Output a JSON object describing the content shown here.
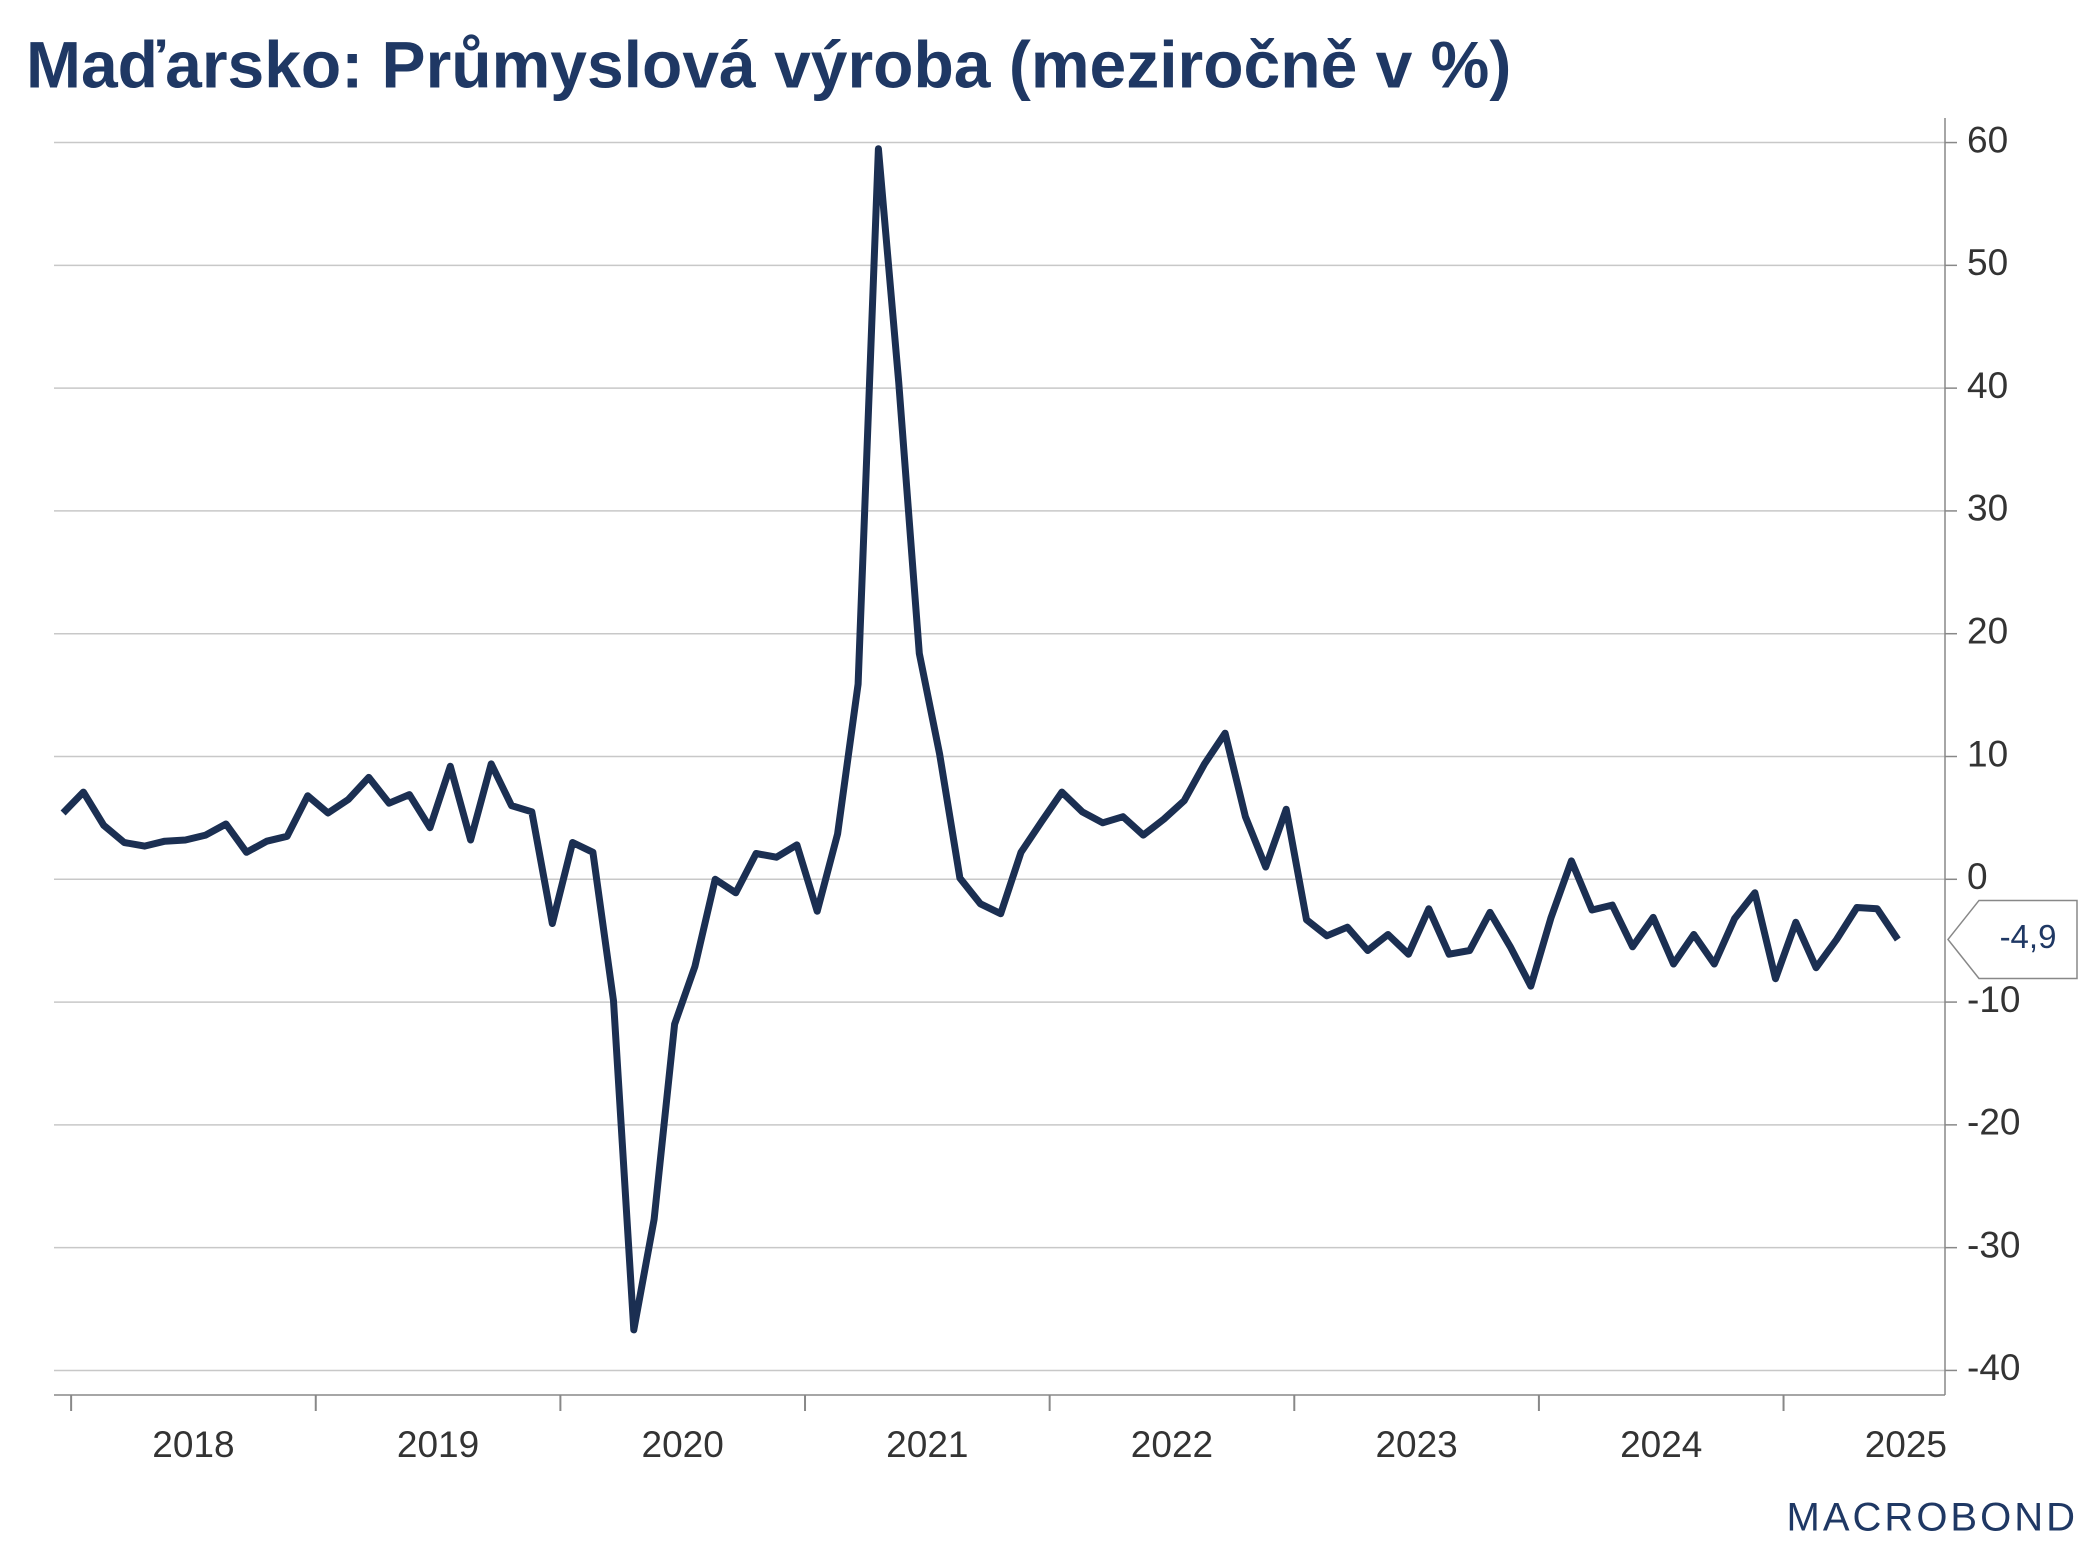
{
  "chart_data": {
    "type": "line",
    "title": "Maďarsko: Průmyslová výroba (meziročně v %)",
    "source": "MACROBOND",
    "x": [
      2017.967,
      2018.05,
      2018.133,
      2018.217,
      2018.3,
      2018.383,
      2018.467,
      2018.55,
      2018.633,
      2018.717,
      2018.8,
      2018.883,
      2018.967,
      2019.05,
      2019.133,
      2019.217,
      2019.3,
      2019.383,
      2019.467,
      2019.55,
      2019.633,
      2019.717,
      2019.8,
      2019.883,
      2019.967,
      2020.05,
      2020.133,
      2020.217,
      2020.3,
      2020.383,
      2020.467,
      2020.55,
      2020.633,
      2020.717,
      2020.8,
      2020.883,
      2020.967,
      2021.05,
      2021.133,
      2021.217,
      2021.3,
      2021.383,
      2021.467,
      2021.55,
      2021.633,
      2021.717,
      2021.8,
      2021.883,
      2021.967,
      2022.05,
      2022.133,
      2022.217,
      2022.3,
      2022.383,
      2022.467,
      2022.55,
      2022.633,
      2022.717,
      2022.8,
      2022.883,
      2022.967,
      2023.05,
      2023.133,
      2023.217,
      2023.3,
      2023.383,
      2023.467,
      2023.55,
      2023.633,
      2023.717,
      2023.8,
      2023.883,
      2023.967,
      2024.05,
      2024.133,
      2024.217,
      2024.3,
      2024.383,
      2024.467,
      2024.55,
      2024.633,
      2024.717,
      2024.8,
      2024.883,
      2024.967,
      2025.05,
      2025.133,
      2025.217,
      2025.3,
      2025.383,
      2025.467
    ],
    "series": [
      {
        "name": "Průmyslová výroba",
        "color": "#1b2f52",
        "values": [
          5.4,
          7.1,
          4.4,
          3.0,
          2.7,
          3.1,
          3.2,
          3.6,
          4.5,
          2.2,
          3.1,
          3.5,
          6.8,
          5.4,
          6.5,
          8.3,
          6.2,
          6.9,
          4.2,
          9.2,
          3.2,
          9.4,
          6.0,
          5.5,
          -3.6,
          3.0,
          2.2,
          -9.9,
          -36.7,
          -27.7,
          -11.8,
          -7.1,
          0.0,
          -1.1,
          2.1,
          1.8,
          2.8,
          -2.6,
          3.7,
          15.9,
          59.5,
          40.5,
          18.4,
          10.2,
          0.1,
          -2.0,
          -2.8,
          2.2,
          4.7,
          7.1,
          5.5,
          4.6,
          5.1,
          3.6,
          4.9,
          6.4,
          9.4,
          11.9,
          5.1,
          1.0,
          5.7,
          -3.3,
          -4.6,
          -3.9,
          -5.8,
          -4.5,
          -6.1,
          -2.4,
          -6.1,
          -5.8,
          -2.7,
          -5.5,
          -8.7,
          -3.1,
          1.5,
          -2.5,
          -2.1,
          -5.5,
          -3.1,
          -6.9,
          -4.5,
          -6.9,
          -3.2,
          -1.1,
          -8.1,
          -3.5,
          -7.2,
          -4.9,
          -2.3,
          -2.4,
          -4.9
        ]
      }
    ],
    "last_value_label": "-4,9",
    "xlim": [
      2017.93,
      2025.66
    ],
    "xticks": [
      2018,
      2019,
      2020,
      2021,
      2022,
      2023,
      2024,
      2025
    ],
    "ylim": [
      -42,
      62
    ],
    "yticks": [
      -40,
      -30,
      -20,
      -10,
      0,
      10,
      20,
      30,
      40,
      50,
      60
    ],
    "grid": true
  }
}
